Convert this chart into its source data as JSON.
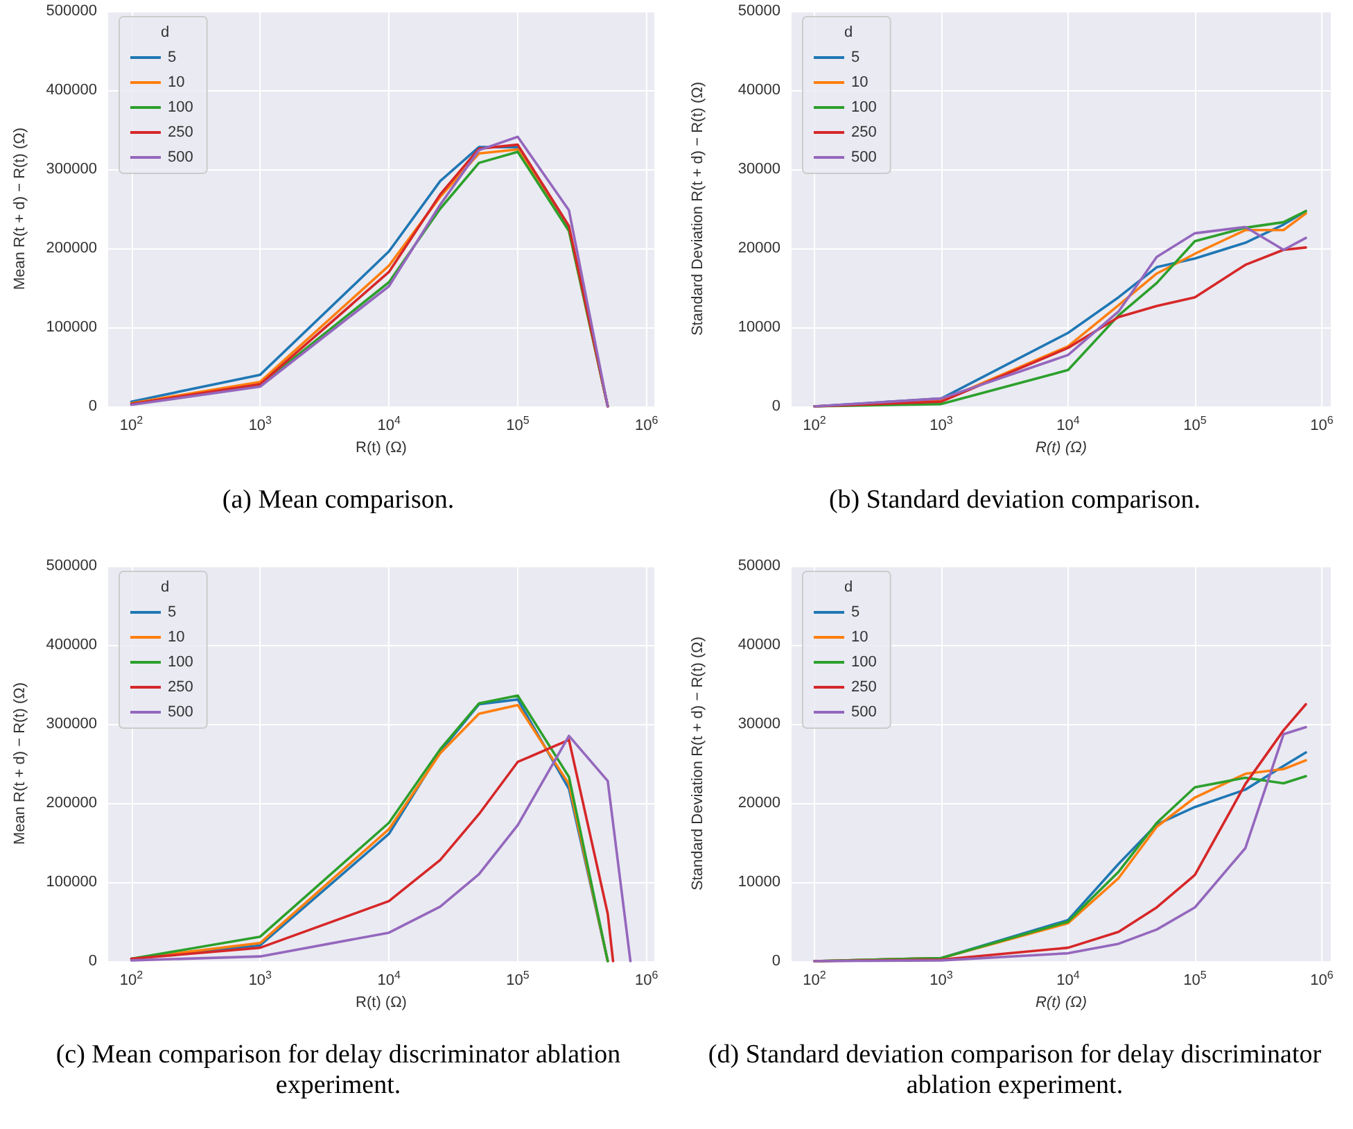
{
  "chart_data": [
    {
      "type": "line",
      "xlabel": "R(t) (Ω)",
      "ylabel": "Mean R(t + d) − R(t) (Ω)",
      "legend_title": "d",
      "legend": "top left",
      "grid": true,
      "log": "x",
      "annotations": [
        "(a) Mean comparison."
      ],
      "x": [
        100,
        1000,
        10000,
        25000,
        50000,
        100000,
        250000,
        500000
      ],
      "xlim": [
        66,
        1150000
      ],
      "xticks": [
        {
          "value": 100,
          "label": "10$^{2}$"
        },
        {
          "value": 1000,
          "label": "10$^{3}$"
        },
        {
          "value": 10000,
          "label": "10$^{4}$"
        },
        {
          "value": 100000,
          "label": "10$^{5}$"
        },
        {
          "value": 1000000,
          "label": "10$^{6}$"
        }
      ],
      "ylim": [
        0,
        500000
      ],
      "yticks": [
        0,
        100000,
        200000,
        300000,
        400000,
        500000
      ],
      "series": [
        {
          "name": "5",
          "color": "#1f77b4",
          "values": [
            6000,
            40000,
            196000,
            285000,
            328000,
            328000,
            225000,
            0
          ]
        },
        {
          "name": "10",
          "color": "#ff7f0e",
          "values": [
            4000,
            31000,
            178000,
            265000,
            320000,
            325000,
            222000,
            0
          ]
        },
        {
          "name": "100",
          "color": "#2ca02c",
          "values": [
            3000,
            27000,
            157000,
            250000,
            308000,
            322000,
            222000,
            0
          ]
        },
        {
          "name": "250",
          "color": "#d62728",
          "values": [
            3000,
            28000,
            170000,
            268000,
            326000,
            331000,
            228000,
            0
          ]
        },
        {
          "name": "500",
          "color": "#9467bd",
          "values": [
            2000,
            25000,
            152000,
            255000,
            324000,
            341000,
            248000,
            0
          ]
        }
      ]
    },
    {
      "type": "line",
      "xlabel": "R(t) (Ω)",
      "ylabel": "Standard Deviation R(t + d) − R(t) (Ω)",
      "legend_title": "d",
      "legend": "top left",
      "grid": true,
      "log": "x",
      "annotations": [
        "(b) Standard deviation comparison."
      ],
      "x": [
        100,
        1000,
        10000,
        25000,
        50000,
        100000,
        250000,
        500000,
        750000
      ],
      "xlim": [
        66,
        1180000
      ],
      "xticks": [
        {
          "value": 100,
          "label": "10$^{2}$"
        },
        {
          "value": 1000,
          "label": "10$^{3}$"
        },
        {
          "value": 10000,
          "label": "10$^{4}$"
        },
        {
          "value": 100000,
          "label": "10$^{5}$"
        },
        {
          "value": 1000000,
          "label": "10$^{6}$"
        }
      ],
      "ylim": [
        0,
        50000
      ],
      "yticks": [
        0,
        10000,
        20000,
        30000,
        40000,
        50000
      ],
      "series": [
        {
          "name": "5",
          "color": "#1f77b4",
          "values": [
            0,
            1000,
            9300,
            13800,
            17600,
            18700,
            20700,
            23000,
            24700
          ]
        },
        {
          "name": "10",
          "color": "#ff7f0e",
          "values": [
            0,
            700,
            7600,
            12800,
            16800,
            19300,
            22300,
            22300,
            24400
          ]
        },
        {
          "name": "100",
          "color": "#2ca02c",
          "values": [
            0,
            300,
            4600,
            11500,
            15600,
            20900,
            22600,
            23300,
            24700
          ]
        },
        {
          "name": "250",
          "color": "#d62728",
          "values": [
            0,
            600,
            7400,
            11300,
            12700,
            13800,
            17900,
            19800,
            20100
          ]
        },
        {
          "name": "500",
          "color": "#9467bd",
          "values": [
            0,
            1000,
            6500,
            12000,
            18900,
            21900,
            22700,
            19800,
            21300
          ]
        }
      ]
    },
    {
      "type": "line",
      "xlabel": "R(t) (Ω)",
      "ylabel": "Mean R(t + d) − R(t) (Ω)",
      "legend_title": "d",
      "legend": "top left",
      "grid": true,
      "log": "x",
      "annotations": [
        "(c) Mean comparison for delay discriminator ablation experiment."
      ],
      "x": [
        100,
        1000,
        10000,
        25000,
        50000,
        100000,
        250000,
        500000
      ],
      "xlim": [
        66,
        1150000
      ],
      "xticks": [
        {
          "value": 100,
          "label": "10$^{2}$"
        },
        {
          "value": 1000,
          "label": "10$^{3}$"
        },
        {
          "value": 10000,
          "label": "10$^{4}$"
        },
        {
          "value": 100000,
          "label": "10$^{5}$"
        },
        {
          "value": 1000000,
          "label": "10$^{6}$"
        }
      ],
      "ylim": [
        0,
        500000
      ],
      "yticks": [
        0,
        100000,
        200000,
        300000,
        400000,
        500000
      ],
      "series": [
        {
          "name": "5",
          "color": "#1f77b4",
          "values": [
            3000,
            20000,
            161000,
            265000,
            325000,
            331000,
            218000,
            0
          ]
        },
        {
          "name": "10",
          "color": "#ff7f0e",
          "values": [
            3000,
            23000,
            167000,
            263000,
            313000,
            324000,
            224000,
            0
          ]
        },
        {
          "name": "100",
          "color": "#2ca02c",
          "values": [
            3000,
            31000,
            175000,
            268000,
            326000,
            336000,
            233000,
            0
          ]
        },
        {
          "name": "250",
          "color": "#d62728",
          "x": [
            100,
            1000,
            10000,
            25000,
            50000,
            100000,
            250000,
            500000,
            550000
          ],
          "values": [
            3000,
            17000,
            76000,
            128000,
            186000,
            252000,
            280000,
            60000,
            0
          ]
        },
        {
          "name": "500",
          "color": "#9467bd",
          "x": [
            100,
            1000,
            10000,
            25000,
            50000,
            100000,
            250000,
            500000,
            750000
          ],
          "values": [
            1000,
            6000,
            36000,
            69000,
            110000,
            172000,
            285000,
            228000,
            0
          ]
        }
      ]
    },
    {
      "type": "line",
      "xlabel": "R(t) (Ω)",
      "ylabel": "Standard Deviation R(t + d) − R(t) (Ω)",
      "legend_title": "d",
      "legend": "top left",
      "grid": true,
      "log": "x",
      "annotations": [
        "(d) Standard deviation comparison for delay discriminator ablation experiment."
      ],
      "x": [
        100,
        1000,
        10000,
        25000,
        50000,
        100000,
        250000,
        500000,
        750000
      ],
      "xlim": [
        66,
        1180000
      ],
      "xticks": [
        {
          "value": 100,
          "label": "10$^{2}$"
        },
        {
          "value": 1000,
          "label": "10$^{3}$"
        },
        {
          "value": 10000,
          "label": "10$^{4}$"
        },
        {
          "value": 100000,
          "label": "10$^{5}$"
        },
        {
          "value": 1000000,
          "label": "10$^{6}$"
        }
      ],
      "ylim": [
        0,
        50000
      ],
      "yticks": [
        0,
        10000,
        20000,
        30000,
        40000,
        50000
      ],
      "series": [
        {
          "name": "5",
          "color": "#1f77b4",
          "values": [
            0,
            400,
            5200,
            12300,
            17300,
            19500,
            21700,
            24700,
            26400
          ]
        },
        {
          "name": "10",
          "color": "#ff7f0e",
          "values": [
            0,
            400,
            4800,
            10500,
            17000,
            20700,
            23700,
            24300,
            25400
          ]
        },
        {
          "name": "100",
          "color": "#2ca02c",
          "values": [
            0,
            400,
            5000,
            11300,
            17500,
            22000,
            23200,
            22500,
            23400
          ]
        },
        {
          "name": "250",
          "color": "#d62728",
          "values": [
            0,
            200,
            1700,
            3700,
            6800,
            10900,
            22400,
            29200,
            32500
          ]
        },
        {
          "name": "500",
          "color": "#9467bd",
          "values": [
            0,
            100,
            1000,
            2200,
            4000,
            6800,
            14300,
            28700,
            29600
          ]
        }
      ]
    }
  ]
}
